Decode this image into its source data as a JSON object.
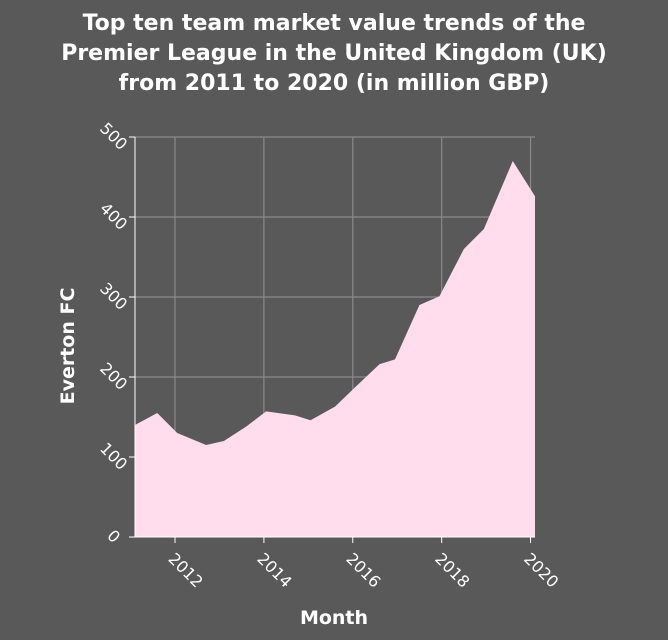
{
  "chart_data": {
    "type": "area",
    "title_lines": [
      "Top ten team market value trends of the",
      "Premier League in the United Kingdom (UK)",
      "from 2011 to 2020 (in million GBP)"
    ],
    "xlabel": "Month",
    "ylabel": "Everton FC",
    "xlim": [
      2011.1,
      2020.1
    ],
    "ylim": [
      0,
      500
    ],
    "xticks": [
      2012,
      2014,
      2016,
      2018,
      2020
    ],
    "xtick_labels": [
      "2012",
      "2014",
      "2016",
      "2018",
      "2020"
    ],
    "yticks": [
      0,
      100,
      200,
      300,
      400,
      500
    ],
    "ytick_labels": [
      "0",
      "100",
      "200",
      "300",
      "400",
      "500"
    ],
    "grid": true,
    "area_color": "#ffdded",
    "background_color": "#595959",
    "x": [
      2011.1,
      2011.6,
      2012.05,
      2012.7,
      2013.1,
      2013.6,
      2014.05,
      2014.7,
      2015.05,
      2015.6,
      2016.05,
      2016.6,
      2016.95,
      2017.5,
      2017.95,
      2018.5,
      2018.95,
      2019.6,
      2020.1
    ],
    "y": [
      140,
      155,
      130,
      115,
      120,
      138,
      157,
      152,
      146,
      163,
      187,
      216,
      222,
      290,
      301,
      360,
      385,
      470,
      426
    ]
  }
}
